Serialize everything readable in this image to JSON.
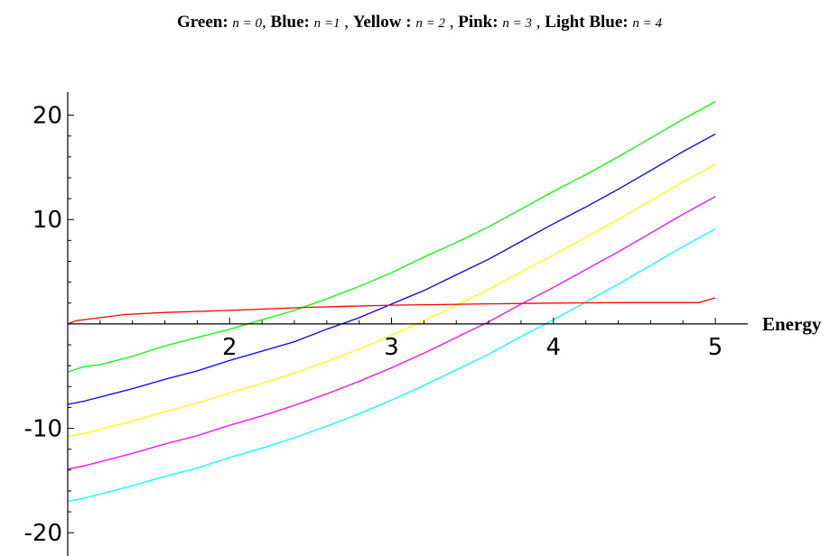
{
  "title": {
    "segments": [
      {
        "name": "Green:",
        "expr": "n = 0"
      },
      {
        "name": "Blue:",
        "expr": "n =1"
      },
      {
        "name": "Yellow :",
        "expr": "n = 2"
      },
      {
        "name": "Pink:",
        "expr": "n = 3"
      },
      {
        "name": "Light Blue:",
        "expr": "n = 4"
      }
    ]
  },
  "chart_data": {
    "type": "line",
    "title": "Green: n = 0, Blue: n =1 , Yellow : n = 2 , Pink: n = 3 , Light Blue: n = 4",
    "xlabel": "Energy",
    "ylabel": "",
    "xlim": [
      1,
      5.1
    ],
    "ylim": [
      -20.5,
      21
    ],
    "xticks": [
      2,
      3,
      4,
      5
    ],
    "yticks": [
      -20,
      -10,
      10,
      20
    ],
    "xtick_labels": [
      "2",
      "3",
      "4",
      "5"
    ],
    "ytick_labels": [
      "-20",
      "-10",
      "10",
      "20"
    ],
    "grid": false,
    "legend": "none",
    "series": [
      {
        "name": "n = 0",
        "color": "#00ff00",
        "x": [
          1.0,
          1.1,
          1.2,
          1.4,
          1.6,
          1.8,
          2.0,
          2.2,
          2.4,
          2.6,
          2.8,
          3.0,
          3.2,
          3.4,
          3.6,
          3.8,
          4.0,
          4.2,
          4.4,
          4.6,
          4.8,
          5.0
        ],
        "y": [
          -4.6,
          -4.1,
          -3.9,
          -3.1,
          -2.1,
          -1.3,
          -0.5,
          0.4,
          1.3,
          2.4,
          3.6,
          4.9,
          6.4,
          7.8,
          9.3,
          11.0,
          12.7,
          14.3,
          16.0,
          17.8,
          19.6,
          21.3
        ]
      },
      {
        "name": "n = 1",
        "color": "#0000ff",
        "x": [
          1.0,
          1.1,
          1.2,
          1.4,
          1.6,
          1.8,
          2.0,
          2.2,
          2.4,
          2.6,
          2.8,
          3.0,
          3.2,
          3.4,
          3.6,
          3.8,
          4.0,
          4.2,
          4.4,
          4.6,
          4.8,
          5.0
        ],
        "y": [
          -7.7,
          -7.4,
          -7.0,
          -6.2,
          -5.3,
          -4.5,
          -3.5,
          -2.6,
          -1.7,
          -0.5,
          0.6,
          1.9,
          3.2,
          4.7,
          6.2,
          7.9,
          9.6,
          11.2,
          12.9,
          14.7,
          16.5,
          18.2
        ]
      },
      {
        "name": "n = 2",
        "color": "#ffff00",
        "x": [
          1.0,
          1.1,
          1.2,
          1.4,
          1.6,
          1.8,
          2.0,
          2.2,
          2.4,
          2.6,
          2.8,
          3.0,
          3.2,
          3.4,
          3.6,
          3.8,
          4.0,
          4.2,
          4.4,
          4.6,
          4.8,
          5.0
        ],
        "y": [
          -10.8,
          -10.5,
          -10.1,
          -9.3,
          -8.4,
          -7.6,
          -6.6,
          -5.7,
          -4.7,
          -3.6,
          -2.4,
          -1.1,
          0.3,
          1.8,
          3.3,
          5.0,
          6.6,
          8.3,
          10.0,
          11.8,
          13.6,
          15.3
        ]
      },
      {
        "name": "n = 3",
        "color": "#ff00ff",
        "x": [
          1.0,
          1.1,
          1.2,
          1.4,
          1.6,
          1.8,
          2.0,
          2.2,
          2.4,
          2.6,
          2.8,
          3.0,
          3.2,
          3.4,
          3.6,
          3.8,
          4.0,
          4.2,
          4.4,
          4.6,
          4.8,
          5.0
        ],
        "y": [
          -13.9,
          -13.6,
          -13.2,
          -12.4,
          -11.5,
          -10.7,
          -9.7,
          -8.8,
          -7.8,
          -6.7,
          -5.5,
          -4.2,
          -2.8,
          -1.3,
          0.2,
          1.9,
          3.5,
          5.2,
          6.9,
          8.7,
          10.5,
          12.2
        ]
      },
      {
        "name": "n = 4",
        "color": "#00ffff",
        "x": [
          1.0,
          1.1,
          1.2,
          1.4,
          1.6,
          1.8,
          2.0,
          2.2,
          2.4,
          2.6,
          2.8,
          3.0,
          3.2,
          3.4,
          3.6,
          3.8,
          4.0,
          4.2,
          4.4,
          4.6,
          4.8,
          5.0
        ],
        "y": [
          -17.0,
          -16.7,
          -16.3,
          -15.5,
          -14.6,
          -13.8,
          -12.8,
          -11.9,
          -10.9,
          -9.8,
          -8.6,
          -7.3,
          -5.9,
          -4.4,
          -2.9,
          -1.2,
          0.4,
          2.1,
          3.8,
          5.6,
          7.4,
          9.1
        ]
      },
      {
        "name": "",
        "color": "#ff0000",
        "x": [
          1.0,
          1.05,
          1.15,
          1.35,
          1.6,
          2.0,
          2.5,
          3.0,
          3.5,
          4.0,
          4.5,
          4.9,
          5.0
        ],
        "y": [
          0.0,
          0.3,
          0.5,
          0.9,
          1.1,
          1.3,
          1.6,
          1.8,
          1.9,
          2.0,
          2.05,
          2.05,
          2.5
        ]
      }
    ]
  }
}
